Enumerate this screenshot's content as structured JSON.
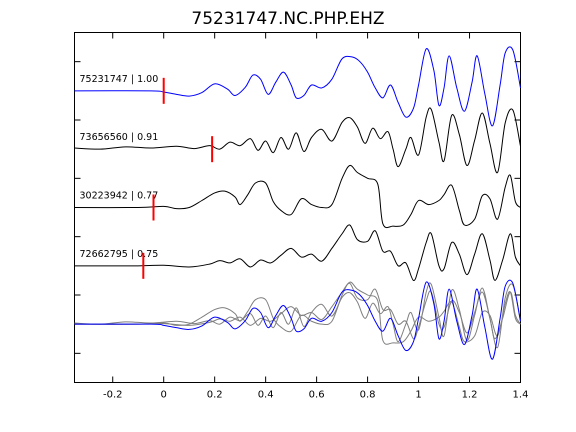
{
  "chart_data": {
    "type": "line",
    "title": "75231747.NC.PHP.EHZ",
    "xlabel": "",
    "ylabel": "",
    "xlim": [
      -0.35,
      1.4
    ],
    "xticks": [
      -0.2,
      0,
      0.2,
      0.4,
      0.6,
      0.8,
      1,
      1.2,
      1.4
    ],
    "xtick_labels": [
      "-0.2",
      "0",
      "0.2",
      "0.4",
      "0.6",
      "0.8",
      "1",
      "1.2",
      "1.4"
    ],
    "ylim": [
      -0.5,
      5.5
    ],
    "grid": false,
    "legend": "none",
    "colors": {
      "primary": "#0000ff",
      "secondary": "#000000",
      "overlay": "#7f7f7f",
      "pick": "#ff0000"
    },
    "series": [
      {
        "label": "75231747 | 1.00",
        "offset": 4.5,
        "pick_time": 0.0,
        "color": "#0000ff",
        "points": [
          [
            -0.35,
            0
          ],
          [
            -0.05,
            0
          ],
          [
            0.0,
            -0.02
          ],
          [
            0.05,
            -0.06
          ],
          [
            0.1,
            -0.09
          ],
          [
            0.15,
            -0.03
          ],
          [
            0.2,
            0.12
          ],
          [
            0.25,
            0.03
          ],
          [
            0.28,
            -0.08
          ],
          [
            0.32,
            0.06
          ],
          [
            0.35,
            0.27
          ],
          [
            0.38,
            0.2
          ],
          [
            0.41,
            -0.06
          ],
          [
            0.44,
            0.15
          ],
          [
            0.47,
            0.32
          ],
          [
            0.5,
            0.1
          ],
          [
            0.52,
            -0.12
          ],
          [
            0.55,
            -0.08
          ],
          [
            0.58,
            0.1
          ],
          [
            0.62,
            0.05
          ],
          [
            0.66,
            0.2
          ],
          [
            0.7,
            0.55
          ],
          [
            0.74,
            0.58
          ],
          [
            0.77,
            0.5
          ],
          [
            0.8,
            0.32
          ],
          [
            0.83,
            0.05
          ],
          [
            0.86,
            -0.12
          ],
          [
            0.89,
            0.1
          ],
          [
            0.92,
            -0.2
          ],
          [
            0.95,
            -0.45
          ],
          [
            0.98,
            -0.3
          ],
          [
            1.0,
            0.1
          ],
          [
            1.03,
            0.72
          ],
          [
            1.06,
            0.35
          ],
          [
            1.08,
            -0.25
          ],
          [
            1.1,
            0.05
          ],
          [
            1.12,
            0.6
          ],
          [
            1.15,
            0.05
          ],
          [
            1.18,
            -0.35
          ],
          [
            1.21,
            0.15
          ],
          [
            1.23,
            0.6
          ],
          [
            1.26,
            -0.05
          ],
          [
            1.29,
            -0.6
          ],
          [
            1.32,
            0.1
          ],
          [
            1.34,
            0.65
          ],
          [
            1.37,
            0.7
          ],
          [
            1.4,
            0.05
          ]
        ]
      },
      {
        "label": "73656560 | 0.91",
        "offset": 3.5,
        "pick_time": 0.19,
        "color": "#000000",
        "points": [
          [
            -0.35,
            0.02
          ],
          [
            -0.25,
            0.0
          ],
          [
            -0.15,
            0.04
          ],
          [
            -0.05,
            0.02
          ],
          [
            0.05,
            0.05
          ],
          [
            0.12,
            0.01
          ],
          [
            0.18,
            0.06
          ],
          [
            0.22,
            0.0
          ],
          [
            0.26,
            0.12
          ],
          [
            0.3,
            0.06
          ],
          [
            0.34,
            0.18
          ],
          [
            0.37,
            -0.02
          ],
          [
            0.4,
            0.14
          ],
          [
            0.43,
            -0.06
          ],
          [
            0.46,
            0.2
          ],
          [
            0.49,
            0.0
          ],
          [
            0.52,
            0.28
          ],
          [
            0.55,
            -0.04
          ],
          [
            0.58,
            0.2
          ],
          [
            0.62,
            0.34
          ],
          [
            0.66,
            0.14
          ],
          [
            0.7,
            0.46
          ],
          [
            0.73,
            0.54
          ],
          [
            0.76,
            0.38
          ],
          [
            0.79,
            0.1
          ],
          [
            0.82,
            0.36
          ],
          [
            0.85,
            0.18
          ],
          [
            0.88,
            0.3
          ],
          [
            0.9,
            0.0
          ],
          [
            0.92,
            -0.3
          ],
          [
            0.95,
            0.0
          ],
          [
            0.97,
            0.2
          ],
          [
            1.0,
            -0.1
          ],
          [
            1.03,
            0.55
          ],
          [
            1.05,
            0.68
          ],
          [
            1.08,
            0.12
          ],
          [
            1.1,
            -0.2
          ],
          [
            1.13,
            0.58
          ],
          [
            1.16,
            0.25
          ],
          [
            1.19,
            -0.28
          ],
          [
            1.22,
            0.15
          ],
          [
            1.25,
            0.62
          ],
          [
            1.28,
            0.1
          ],
          [
            1.31,
            -0.4
          ],
          [
            1.34,
            0.45
          ],
          [
            1.37,
            0.67
          ],
          [
            1.4,
            0.05
          ]
        ]
      },
      {
        "label": "30223942 | 0.77",
        "offset": 2.5,
        "pick_time": -0.04,
        "color": "#000000",
        "points": [
          [
            -0.35,
            0.0
          ],
          [
            -0.1,
            0.0
          ],
          [
            0.0,
            0.02
          ],
          [
            0.05,
            -0.02
          ],
          [
            0.1,
            0.0
          ],
          [
            0.15,
            0.12
          ],
          [
            0.2,
            0.25
          ],
          [
            0.24,
            0.28
          ],
          [
            0.28,
            0.18
          ],
          [
            0.3,
            0.05
          ],
          [
            0.33,
            0.22
          ],
          [
            0.36,
            0.42
          ],
          [
            0.4,
            0.42
          ],
          [
            0.43,
            0.1
          ],
          [
            0.46,
            -0.05
          ],
          [
            0.5,
            -0.12
          ],
          [
            0.54,
            0.15
          ],
          [
            0.58,
            0.05
          ],
          [
            0.62,
            0.0
          ],
          [
            0.66,
            0.05
          ],
          [
            0.7,
            0.5
          ],
          [
            0.73,
            0.72
          ],
          [
            0.76,
            0.6
          ],
          [
            0.8,
            0.5
          ],
          [
            0.84,
            0.4
          ],
          [
            0.86,
            -0.28
          ],
          [
            0.9,
            -0.32
          ],
          [
            0.94,
            -0.3
          ],
          [
            0.97,
            -0.12
          ],
          [
            1.0,
            0.12
          ],
          [
            1.04,
            0.05
          ],
          [
            1.08,
            0.12
          ],
          [
            1.1,
            0.22
          ],
          [
            1.13,
            0.38
          ],
          [
            1.16,
            -0.05
          ],
          [
            1.18,
            -0.3
          ],
          [
            1.22,
            -0.2
          ],
          [
            1.25,
            0.2
          ],
          [
            1.28,
            0.15
          ],
          [
            1.31,
            -0.2
          ],
          [
            1.34,
            0.35
          ],
          [
            1.36,
            0.55
          ],
          [
            1.38,
            0.1
          ],
          [
            1.4,
            0.0
          ]
        ]
      },
      {
        "label": "72662795 | 0.75",
        "offset": 1.5,
        "pick_time": -0.08,
        "color": "#000000",
        "points": [
          [
            -0.35,
            0.0
          ],
          [
            -0.1,
            0.0
          ],
          [
            0.0,
            0.01
          ],
          [
            0.1,
            -0.02
          ],
          [
            0.18,
            0.03
          ],
          [
            0.22,
            0.09
          ],
          [
            0.26,
            0.05
          ],
          [
            0.3,
            0.12
          ],
          [
            0.34,
            -0.02
          ],
          [
            0.38,
            0.1
          ],
          [
            0.42,
            0.05
          ],
          [
            0.46,
            0.18
          ],
          [
            0.5,
            0.3
          ],
          [
            0.54,
            0.15
          ],
          [
            0.58,
            0.2
          ],
          [
            0.62,
            0.08
          ],
          [
            0.66,
            0.3
          ],
          [
            0.7,
            0.55
          ],
          [
            0.73,
            0.7
          ],
          [
            0.76,
            0.45
          ],
          [
            0.8,
            0.42
          ],
          [
            0.83,
            0.6
          ],
          [
            0.86,
            0.25
          ],
          [
            0.89,
            0.25
          ],
          [
            0.92,
            0.0
          ],
          [
            0.95,
            0.05
          ],
          [
            0.98,
            -0.25
          ],
          [
            1.0,
            -0.05
          ],
          [
            1.03,
            0.4
          ],
          [
            1.05,
            0.55
          ],
          [
            1.08,
            0.0
          ],
          [
            1.1,
            -0.05
          ],
          [
            1.13,
            0.4
          ],
          [
            1.16,
            0.2
          ],
          [
            1.19,
            -0.15
          ],
          [
            1.22,
            0.2
          ],
          [
            1.25,
            0.55
          ],
          [
            1.28,
            0.1
          ],
          [
            1.3,
            -0.25
          ],
          [
            1.33,
            0.1
          ],
          [
            1.36,
            0.55
          ],
          [
            1.38,
            0.15
          ],
          [
            1.4,
            0.0
          ]
        ]
      }
    ],
    "overlay_offset": 0.5
  }
}
